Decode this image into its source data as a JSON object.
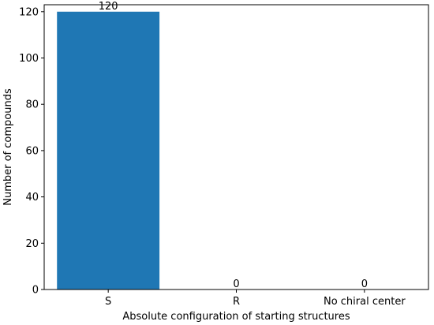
{
  "chart_data": {
    "type": "bar",
    "title": "",
    "xlabel": "Absolute configuration of starting structures",
    "ylabel": "Number of compounds",
    "categories": [
      "S",
      "R",
      "No chiral center"
    ],
    "values": [
      120,
      0,
      0
    ],
    "data_labels": [
      "120",
      "0",
      "0"
    ],
    "ylim": [
      0,
      123
    ],
    "yticks": [
      0,
      20,
      40,
      60,
      80,
      100,
      120
    ],
    "ytick_labels": [
      "0",
      "20",
      "40",
      "60",
      "80",
      "100",
      "120"
    ],
    "grid": false,
    "legend": "none",
    "bar_color": "#1f77b4"
  }
}
